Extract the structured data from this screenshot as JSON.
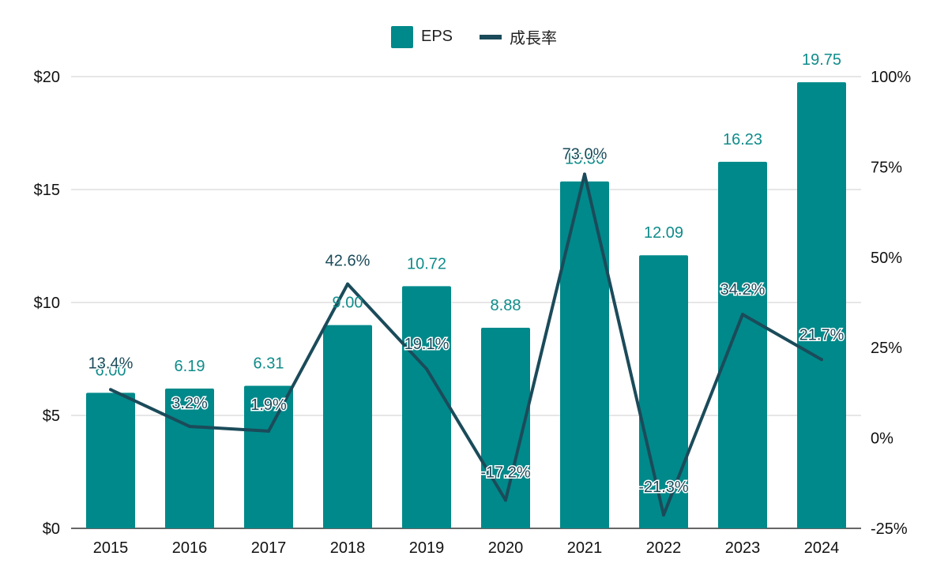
{
  "legend": {
    "eps": "EPS",
    "growth": "成長率"
  },
  "chart_data": {
    "type": "bar",
    "categories": [
      "2015",
      "2016",
      "2017",
      "2018",
      "2019",
      "2020",
      "2021",
      "2022",
      "2023",
      "2024"
    ],
    "series": [
      {
        "name": "EPS",
        "type": "bar",
        "axis": "left",
        "values": [
          6.0,
          6.19,
          6.31,
          9.0,
          10.72,
          8.88,
          15.36,
          12.09,
          16.23,
          19.75
        ],
        "labels": [
          "6.00",
          "6.19",
          "6.31",
          "9.00",
          "10.72",
          "8.88",
          "15.36",
          "12.09",
          "16.23",
          "19.75"
        ],
        "color": "#00898a"
      },
      {
        "name": "成長率",
        "type": "line",
        "axis": "right",
        "values": [
          13.4,
          3.2,
          1.9,
          42.6,
          19.1,
          -17.2,
          73.0,
          -21.3,
          34.2,
          21.7
        ],
        "labels": [
          "13.4%",
          "3.2%",
          "1.9%",
          "42.6%",
          "19.1%",
          "-17.2%",
          "73.0%",
          "-21.3%",
          "34.2%",
          "21.7%"
        ],
        "color": "#1b4b5a"
      }
    ],
    "y_left": {
      "ylim": [
        0,
        20
      ],
      "ticks": [
        0,
        5,
        10,
        15,
        20
      ],
      "tick_labels": [
        "$0",
        "$5",
        "$10",
        "$15",
        "$20"
      ]
    },
    "y_right": {
      "ylim": [
        -25,
        100
      ],
      "ticks": [
        -25,
        0,
        25,
        50,
        75,
        100
      ],
      "tick_labels": [
        "-25%",
        "0%",
        "25%",
        "50%",
        "75%",
        "100%"
      ]
    },
    "grid": true,
    "legend_position": "top"
  }
}
